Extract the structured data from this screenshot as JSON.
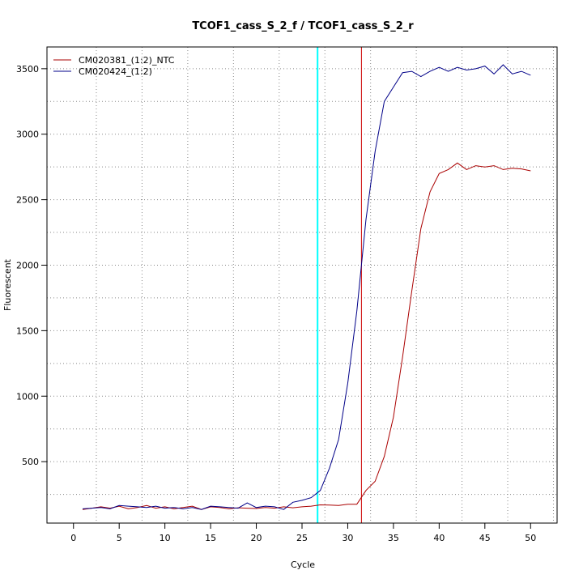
{
  "chart_data": {
    "type": "line",
    "title": "TCOF1_cass_S_2_f / TCOF1_cass_S_2_r",
    "xlabel": "Cycle",
    "ylabel": "Fluorescent",
    "xlim": [
      -2.9,
      52.9
    ],
    "ylim": [
      31,
      3666
    ],
    "x_ticks": [
      0,
      5,
      10,
      15,
      20,
      25,
      30,
      35,
      40,
      45,
      50
    ],
    "y_ticks": [
      500,
      1000,
      1500,
      2000,
      2500,
      3000,
      3500
    ],
    "grid": "dotted",
    "legend_position": "top-left",
    "series": [
      {
        "name": "CM020381_(1:2)_NTC",
        "color": "#aa0000",
        "x": [
          1,
          2,
          3,
          4,
          5,
          6,
          7,
          8,
          9,
          10,
          11,
          12,
          13,
          14,
          15,
          16,
          17,
          18,
          19,
          20,
          21,
          22,
          23,
          24,
          25,
          26,
          27,
          28,
          29,
          30,
          31,
          32,
          33,
          34,
          35,
          36,
          37,
          38,
          39,
          40,
          41,
          42,
          43,
          44,
          45,
          46,
          47,
          48,
          49,
          50
        ],
        "values": [
          135,
          145,
          155,
          145,
          160,
          140,
          150,
          165,
          145,
          155,
          140,
          150,
          160,
          135,
          155,
          150,
          140,
          148,
          145,
          142,
          150,
          145,
          155,
          148,
          155,
          160,
          170,
          168,
          165,
          175,
          175,
          280,
          350,
          540,
          840,
          1300,
          1800,
          2280,
          2560,
          2700,
          2730,
          2780,
          2730,
          2760,
          2750,
          2760,
          2730,
          2740,
          2735,
          2720
        ]
      },
      {
        "name": "CM020424_(1:2)",
        "color": "#000088",
        "x": [
          1,
          2,
          3,
          4,
          5,
          6,
          7,
          8,
          9,
          10,
          11,
          12,
          13,
          14,
          15,
          16,
          17,
          18,
          19,
          20,
          21,
          22,
          23,
          24,
          25,
          26,
          27,
          28,
          29,
          30,
          31,
          32,
          33,
          34,
          35,
          36,
          37,
          38,
          39,
          40,
          41,
          42,
          43,
          44,
          45,
          46,
          47,
          48,
          49,
          50
        ],
        "values": [
          140,
          145,
          150,
          140,
          165,
          160,
          155,
          150,
          160,
          145,
          150,
          140,
          150,
          135,
          160,
          155,
          150,
          145,
          185,
          150,
          160,
          155,
          135,
          190,
          205,
          225,
          280,
          450,
          670,
          1100,
          1650,
          2350,
          2870,
          3250,
          3360,
          3470,
          3480,
          3440,
          3480,
          3510,
          3480,
          3510,
          3490,
          3500,
          3520,
          3460,
          3530,
          3460,
          3480,
          3450
        ]
      }
    ],
    "vlines": [
      {
        "x": 26.7,
        "color": "#00ffff"
      },
      {
        "x": 31.5,
        "color": "#cc0000"
      }
    ]
  }
}
